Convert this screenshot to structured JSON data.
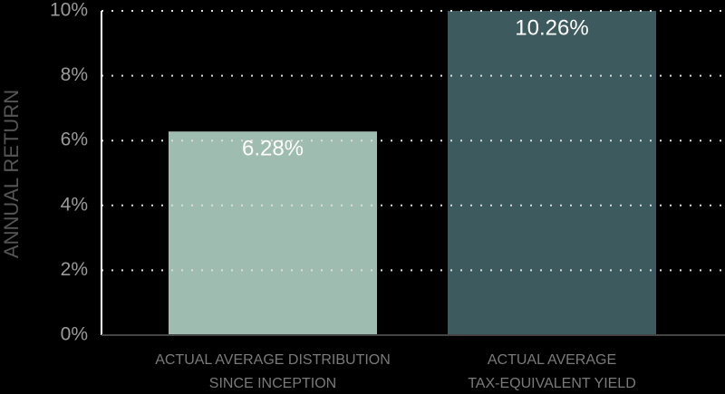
{
  "chart_data": {
    "type": "bar",
    "y_label": "ANNUAL RETURN",
    "categories": [
      [
        "ACTUAL AVERAGE DISTRIBUTION",
        "SINCE INCEPTION"
      ],
      [
        "ACTUAL AVERAGE",
        "TAX-EQUIVALENT YIELD"
      ]
    ],
    "values": [
      6.28,
      10.26
    ],
    "value_labels": [
      "6.28%",
      "10.26%"
    ],
    "colors": [
      "#9fbcb0",
      "#3d5b5e"
    ],
    "ylim": [
      0,
      10
    ],
    "yticks": [
      {
        "value": 0,
        "label": "0%"
      },
      {
        "value": 2,
        "label": "2%"
      },
      {
        "value": 4,
        "label": "4%"
      },
      {
        "value": 6,
        "label": "6%"
      },
      {
        "value": 8,
        "label": "8%"
      },
      {
        "value": 10,
        "label": "10%"
      }
    ],
    "grid": true
  }
}
